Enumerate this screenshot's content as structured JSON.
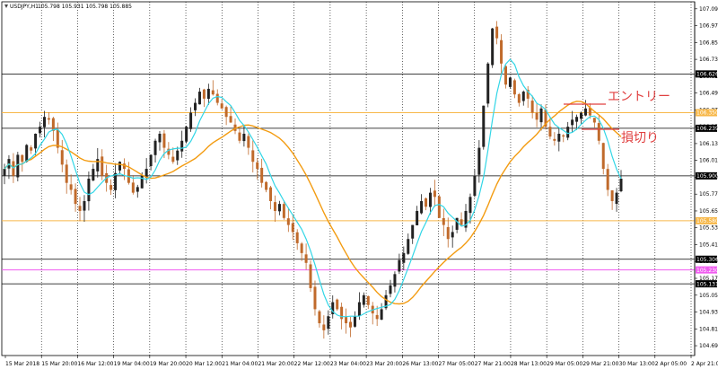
{
  "window": {
    "title": "USDJPY,H1",
    "ohlc": "105.798 105.931 105.798 105.885"
  },
  "colors": {
    "background": "#ffffff",
    "grid": "#000000",
    "candle_up": "#222222",
    "candle_down": "#c06a2b",
    "ma_fast": "#32d6e6",
    "ma_slow": "#f39c12",
    "level_line": "#000000",
    "level_orange": "#f7b84a",
    "level_magenta": "#f05cf0",
    "entry_annotation": "#e04040"
  },
  "axes": {
    "y_ticks": [
      "107.090",
      "106.970",
      "106.850",
      "106.730",
      "106.610",
      "106.490",
      "106.370",
      "106.250",
      "106.130",
      "106.010",
      "105.890",
      "105.770",
      "105.650",
      "105.530",
      "105.410",
      "105.290",
      "105.170",
      "105.050",
      "104.930",
      "104.810",
      "104.690"
    ],
    "x_ticks": [
      "15 Mar 2018",
      "15 Mar 20:00",
      "16 Mar 12:00",
      "19 Mar 04:00",
      "19 Mar 20:00",
      "20 Mar 12:00",
      "21 Mar 04:00",
      "21 Mar 20:00",
      "22 Mar 12:00",
      "23 Mar 04:00",
      "23 Mar 20:00",
      "26 Mar 13:00",
      "27 Mar 05:00",
      "27 Mar 21:00",
      "28 Mar 13:00",
      "29 Mar 05:00",
      "29 Mar 21:00",
      "30 Mar 13:00",
      "2 Apr 05:00",
      "2 Apr 21:00"
    ]
  },
  "levels": [
    {
      "price": 106.626,
      "label": "106.626",
      "style": "black"
    },
    {
      "price": 106.35,
      "label": "106.350",
      "style": "orange"
    },
    {
      "price": 106.239,
      "label": "106.239",
      "style": "black"
    },
    {
      "price": 105.9,
      "label": "105.900",
      "style": "black"
    },
    {
      "price": 105.58,
      "label": "105.580",
      "style": "orange"
    },
    {
      "price": 105.306,
      "label": "105.306",
      "style": "black"
    },
    {
      "price": 105.23,
      "label": "105.230",
      "style": "magenta"
    },
    {
      "price": 105.131,
      "label": "105.131",
      "style": "black"
    }
  ],
  "annotations": {
    "entry_label": "エントリー",
    "stop_label": "損切り"
  },
  "chart_data": {
    "type": "candlestick",
    "symbol": "USDJPY",
    "timeframe": "H1",
    "ylim": [
      104.62,
      107.14
    ],
    "closes": [
      105.95,
      106.02,
      105.9,
      106.05,
      106.0,
      106.12,
      106.08,
      106.2,
      106.25,
      106.32,
      106.3,
      106.22,
      106.1,
      105.98,
      105.85,
      105.8,
      105.7,
      105.65,
      105.72,
      105.88,
      105.95,
      106.02,
      105.9,
      105.85,
      105.8,
      105.92,
      106.0,
      105.95,
      105.85,
      105.78,
      105.82,
      105.9,
      105.95,
      106.05,
      106.15,
      106.2,
      106.1,
      106.05,
      106.0,
      106.08,
      106.15,
      106.25,
      106.35,
      106.42,
      106.5,
      106.45,
      106.52,
      106.48,
      106.42,
      106.38,
      106.32,
      106.28,
      106.22,
      106.15,
      106.2,
      106.1,
      106.0,
      105.95,
      105.85,
      105.8,
      105.72,
      105.65,
      105.7,
      105.6,
      105.55,
      105.5,
      105.42,
      105.35,
      105.28,
      105.1,
      104.95,
      104.85,
      104.8,
      104.9,
      105.0,
      104.95,
      104.88,
      104.85,
      104.82,
      104.9,
      105.0,
      105.05,
      104.98,
      104.92,
      104.88,
      104.95,
      105.05,
      105.12,
      105.2,
      105.3,
      105.35,
      105.45,
      105.55,
      105.65,
      105.72,
      105.68,
      105.78,
      105.75,
      105.6,
      105.55,
      105.45,
      105.5,
      105.6,
      105.55,
      105.65,
      105.75,
      105.9,
      106.1,
      106.4,
      106.7,
      106.95,
      106.88,
      106.7,
      106.55,
      106.6,
      106.48,
      106.42,
      106.5,
      106.45,
      106.35,
      106.3,
      106.38,
      106.25,
      106.18,
      106.15,
      106.2,
      106.18,
      106.25,
      106.3,
      106.32,
      106.35,
      106.38,
      106.33,
      106.28,
      106.15,
      105.95,
      105.8,
      105.72,
      105.78,
      105.88
    ],
    "series": [
      {
        "name": "MA fast",
        "color": "#32d6e6"
      },
      {
        "name": "MA slow",
        "color": "#f39c12"
      }
    ]
  }
}
